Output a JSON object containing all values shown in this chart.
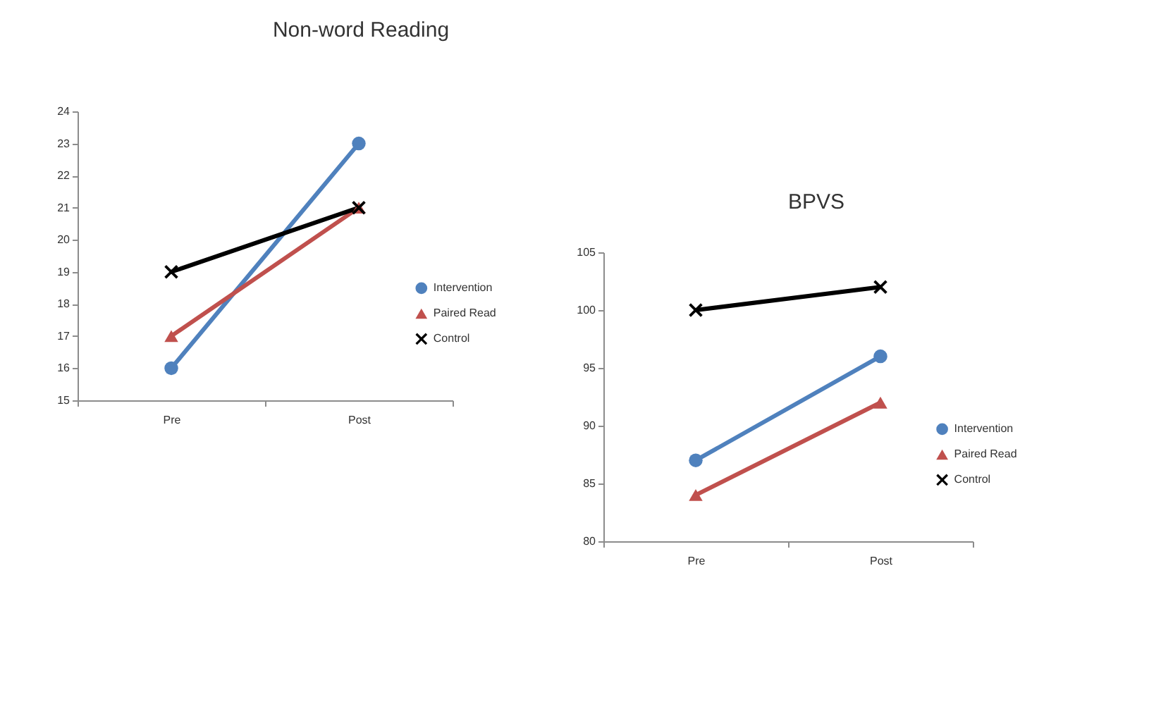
{
  "chart_data": [
    {
      "type": "line",
      "title": "Non-word Reading",
      "categories": [
        "Pre",
        "Post"
      ],
      "series": [
        {
          "name": "Intervention",
          "color": "#4f81bd",
          "marker": "circle",
          "values": [
            16,
            23
          ]
        },
        {
          "name": "Paired Read",
          "color": "#c0504d",
          "marker": "triangle",
          "values": [
            17,
            21
          ]
        },
        {
          "name": "Control",
          "color": "#000000",
          "marker": "cross",
          "values": [
            19,
            21
          ]
        }
      ],
      "ylim": [
        15,
        24
      ],
      "yticks": [
        15,
        16,
        17,
        18,
        19,
        20,
        21,
        22,
        23,
        24
      ],
      "legend": "right"
    },
    {
      "type": "line",
      "title": "BPVS",
      "categories": [
        "Pre",
        "Post"
      ],
      "series": [
        {
          "name": "Intervention",
          "color": "#4f81bd",
          "marker": "circle",
          "values": [
            87,
            96
          ]
        },
        {
          "name": "Paired Read",
          "color": "#c0504d",
          "marker": "triangle",
          "values": [
            84,
            92
          ]
        },
        {
          "name": "Control",
          "color": "#000000",
          "marker": "cross",
          "values": [
            100,
            102
          ]
        }
      ],
      "ylim": [
        80,
        105
      ],
      "yticks": [
        80,
        85,
        90,
        95,
        100,
        105
      ],
      "legend": "right"
    }
  ]
}
